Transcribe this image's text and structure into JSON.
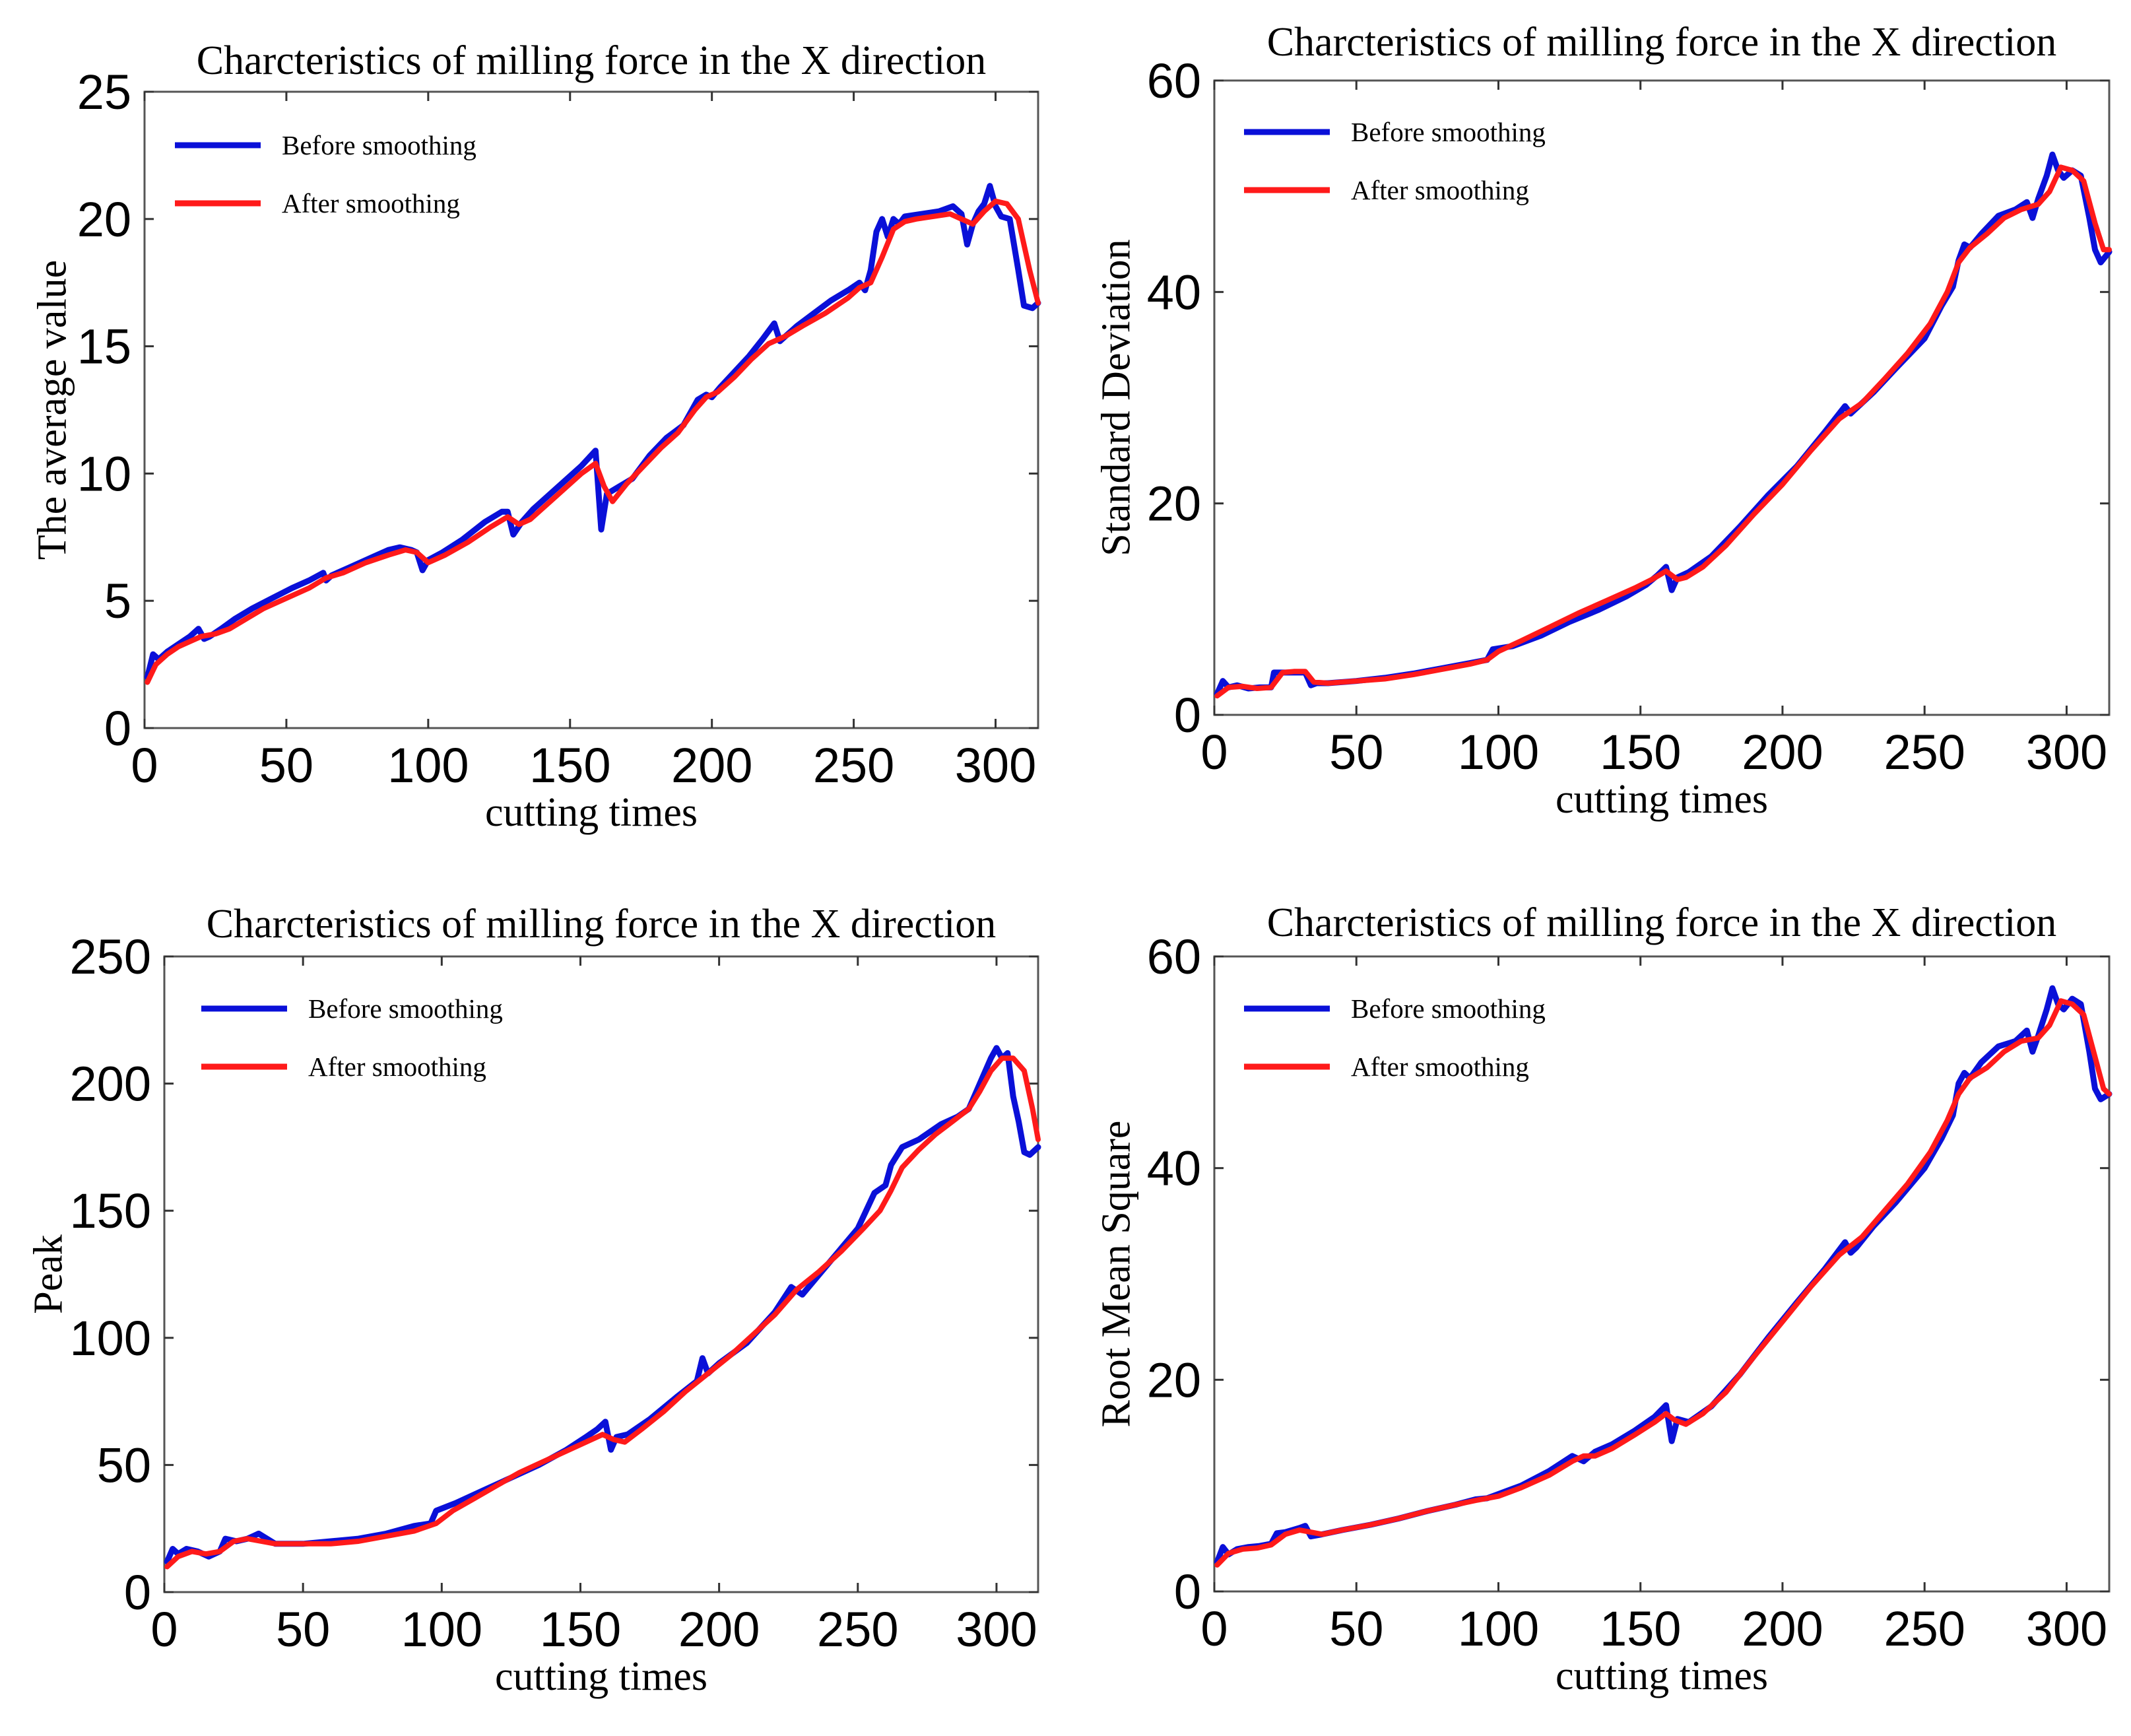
{
  "chart_data": [
    {
      "type": "line",
      "title": "Charcteristics of milling force in the X direction",
      "xlabel": "cutting times",
      "ylabel": "The average value",
      "xlim": [
        0,
        315
      ],
      "ylim": [
        0,
        25
      ],
      "xticks": [
        0,
        50,
        100,
        150,
        200,
        250,
        300
      ],
      "yticks": [
        0,
        5,
        10,
        15,
        20,
        25
      ],
      "legend_position": "top-left",
      "grid": false,
      "series": [
        {
          "name": "Before smoothing",
          "color": "#0a10d8",
          "x": [
            1,
            3,
            5,
            8,
            12,
            16,
            19,
            21,
            23,
            27,
            32,
            38,
            45,
            52,
            58,
            63,
            64,
            66,
            72,
            80,
            86,
            90,
            94,
            96,
            98,
            100,
            105,
            112,
            120,
            126,
            128,
            130,
            133,
            137,
            142,
            148,
            154,
            159,
            161,
            163,
            166,
            172,
            178,
            184,
            190,
            195,
            198,
            200,
            203,
            208,
            213,
            218,
            222,
            224,
            226,
            230,
            236,
            242,
            248,
            252,
            254,
            256,
            258,
            260,
            262,
            264,
            266,
            268,
            274,
            280,
            285,
            288,
            290,
            292,
            294,
            296,
            298,
            300,
            302,
            305,
            308,
            310,
            313,
            315
          ],
          "y": [
            2.0,
            2.9,
            2.7,
            3.0,
            3.3,
            3.6,
            3.9,
            3.5,
            3.6,
            3.9,
            4.3,
            4.7,
            5.1,
            5.5,
            5.8,
            6.1,
            5.8,
            6.0,
            6.3,
            6.7,
            7.0,
            7.1,
            7.0,
            6.9,
            6.2,
            6.6,
            6.9,
            7.4,
            8.1,
            8.5,
            8.5,
            7.6,
            8.1,
            8.6,
            9.1,
            9.7,
            10.3,
            10.9,
            7.8,
            9.2,
            9.4,
            9.8,
            10.7,
            11.4,
            11.9,
            12.9,
            13.1,
            13.0,
            13.4,
            14.0,
            14.6,
            15.3,
            15.9,
            15.2,
            15.4,
            15.8,
            16.3,
            16.8,
            17.2,
            17.5,
            17.2,
            18.0,
            19.5,
            20.0,
            19.3,
            20.0,
            19.8,
            20.1,
            20.2,
            20.3,
            20.5,
            20.2,
            19.0,
            19.8,
            20.3,
            20.6,
            21.3,
            20.5,
            20.1,
            20.0,
            18.0,
            16.6,
            16.5,
            16.7
          ]
        },
        {
          "name": "After smoothing",
          "color": "#ff1a1a",
          "x": [
            1,
            4,
            8,
            12,
            16,
            20,
            25,
            30,
            36,
            42,
            50,
            58,
            64,
            70,
            78,
            86,
            92,
            96,
            100,
            106,
            114,
            122,
            128,
            132,
            136,
            142,
            148,
            154,
            159,
            162,
            165,
            170,
            176,
            182,
            188,
            194,
            198,
            202,
            208,
            214,
            220,
            226,
            232,
            240,
            248,
            252,
            256,
            260,
            264,
            268,
            272,
            278,
            284,
            288,
            292,
            296,
            300,
            304,
            308,
            312,
            315
          ],
          "y": [
            1.8,
            2.5,
            2.9,
            3.2,
            3.4,
            3.6,
            3.7,
            3.9,
            4.3,
            4.7,
            5.1,
            5.5,
            5.9,
            6.1,
            6.5,
            6.8,
            7.0,
            6.9,
            6.5,
            6.8,
            7.3,
            7.9,
            8.3,
            8.0,
            8.2,
            8.8,
            9.4,
            10.0,
            10.4,
            9.5,
            8.9,
            9.6,
            10.3,
            11.0,
            11.6,
            12.5,
            13.0,
            13.2,
            13.8,
            14.5,
            15.1,
            15.4,
            15.8,
            16.3,
            16.9,
            17.3,
            17.5,
            18.5,
            19.6,
            19.9,
            20.0,
            20.1,
            20.2,
            20.0,
            19.8,
            20.3,
            20.7,
            20.6,
            20.0,
            18.0,
            16.7
          ]
        }
      ]
    },
    {
      "type": "line",
      "title": "Charcteristics of milling force in the X direction",
      "xlabel": "cutting times",
      "ylabel": "Standard Deviation",
      "xlim": [
        0,
        315
      ],
      "ylim": [
        0,
        60
      ],
      "xticks": [
        0,
        50,
        100,
        150,
        200,
        250,
        300
      ],
      "yticks": [
        0,
        20,
        40,
        60
      ],
      "legend_position": "top-left",
      "grid": false,
      "series": [
        {
          "name": "Before smoothing",
          "color": "#0a10d8",
          "x": [
            1,
            3,
            5,
            8,
            12,
            16,
            20,
            21,
            24,
            28,
            32,
            34,
            36,
            40,
            50,
            60,
            70,
            80,
            90,
            96,
            98,
            105,
            115,
            125,
            135,
            145,
            152,
            156,
            159,
            161,
            163,
            167,
            175,
            185,
            195,
            205,
            215,
            222,
            224,
            226,
            232,
            240,
            250,
            256,
            260,
            262,
            264,
            266,
            270,
            276,
            282,
            286,
            288,
            290,
            293,
            295,
            297,
            299,
            302,
            305,
            308,
            310,
            312,
            315
          ],
          "y": [
            2.0,
            3.2,
            2.6,
            2.8,
            2.5,
            2.6,
            2.6,
            4.0,
            4.0,
            4.0,
            4.0,
            2.8,
            3.0,
            3.0,
            3.2,
            3.5,
            3.9,
            4.4,
            4.9,
            5.2,
            6.2,
            6.5,
            7.5,
            8.8,
            9.9,
            11.2,
            12.3,
            13.2,
            14.0,
            11.8,
            13.0,
            13.5,
            15.0,
            17.8,
            20.8,
            23.5,
            26.8,
            29.2,
            28.5,
            29.0,
            30.5,
            32.8,
            35.6,
            38.7,
            40.5,
            43.0,
            44.5,
            44.2,
            45.5,
            47.2,
            47.8,
            48.5,
            47.0,
            48.8,
            51.0,
            53.0,
            51.5,
            50.8,
            51.5,
            51.0,
            47.0,
            44.0,
            42.8,
            43.8
          ]
        },
        {
          "name": "After smoothing",
          "color": "#ff1a1a",
          "x": [
            1,
            5,
            10,
            15,
            20,
            24,
            28,
            32,
            35,
            40,
            50,
            60,
            70,
            80,
            90,
            96,
            100,
            108,
            118,
            128,
            138,
            148,
            154,
            159,
            163,
            166,
            172,
            180,
            190,
            200,
            210,
            220,
            228,
            236,
            244,
            252,
            258,
            262,
            266,
            272,
            278,
            284,
            290,
            294,
            298,
            302,
            306,
            310,
            313,
            315
          ],
          "y": [
            1.8,
            2.6,
            2.7,
            2.5,
            2.6,
            4.0,
            4.1,
            4.1,
            3.1,
            3.0,
            3.2,
            3.4,
            3.8,
            4.3,
            4.8,
            5.2,
            6.0,
            7.0,
            8.3,
            9.6,
            10.8,
            12.0,
            12.8,
            13.6,
            12.8,
            13.0,
            14.0,
            16.0,
            19.0,
            21.8,
            25.0,
            28.0,
            29.5,
            31.8,
            34.2,
            37.0,
            40.0,
            42.8,
            44.2,
            45.5,
            47.0,
            47.8,
            48.3,
            49.5,
            51.8,
            51.5,
            50.5,
            46.5,
            44.0,
            44.0
          ]
        }
      ]
    },
    {
      "type": "line",
      "title": "Charcteristics of milling force in the X direction",
      "xlabel": "cutting times",
      "ylabel": "Peak",
      "xlim": [
        0,
        315
      ],
      "ylim": [
        0,
        250
      ],
      "xticks": [
        0,
        50,
        100,
        150,
        200,
        250,
        300
      ],
      "yticks": [
        0,
        50,
        100,
        150,
        200,
        250
      ],
      "legend_position": "top-left",
      "grid": false,
      "series": [
        {
          "name": "Before smoothing",
          "color": "#0a10d8",
          "x": [
            1,
            3,
            5,
            8,
            12,
            16,
            20,
            22,
            26,
            30,
            34,
            40,
            50,
            60,
            70,
            80,
            90,
            96,
            98,
            105,
            115,
            125,
            135,
            145,
            152,
            156,
            159,
            161,
            163,
            167,
            175,
            185,
            192,
            194,
            196,
            200,
            210,
            220,
            226,
            230,
            240,
            250,
            256,
            260,
            262,
            266,
            272,
            280,
            286,
            290,
            294,
            298,
            300,
            302,
            304,
            306,
            308,
            310,
            312,
            315
          ],
          "y": [
            12,
            17,
            15,
            17,
            16,
            14,
            16,
            21,
            20,
            21,
            23,
            19,
            19,
            20,
            21,
            23,
            26,
            27,
            32,
            35,
            40,
            45,
            50,
            56,
            61,
            64,
            67,
            56,
            61,
            62,
            68,
            77,
            83,
            92,
            86,
            90,
            98,
            110,
            120,
            117,
            130,
            143,
            157,
            160,
            168,
            175,
            178,
            184,
            187,
            190,
            200,
            210,
            214,
            210,
            212,
            195,
            185,
            173,
            172,
            175
          ]
        },
        {
          "name": "After smoothing",
          "color": "#ff1a1a",
          "x": [
            1,
            5,
            10,
            15,
            20,
            25,
            30,
            35,
            40,
            50,
            60,
            70,
            80,
            90,
            98,
            104,
            112,
            120,
            128,
            136,
            144,
            152,
            158,
            162,
            166,
            172,
            180,
            188,
            196,
            204,
            212,
            220,
            228,
            236,
            244,
            252,
            258,
            262,
            266,
            272,
            278,
            284,
            290,
            294,
            298,
            302,
            306,
            310,
            313,
            315
          ],
          "y": [
            10,
            14,
            16,
            15,
            16,
            20,
            21,
            20,
            19,
            19,
            19,
            20,
            22,
            24,
            27,
            32,
            37,
            42,
            47,
            51,
            55,
            59,
            62,
            60,
            59,
            64,
            71,
            79,
            86,
            93,
            101,
            109,
            119,
            126,
            134,
            143,
            150,
            158,
            167,
            174,
            180,
            185,
            190,
            197,
            205,
            210,
            210,
            205,
            190,
            178
          ]
        }
      ]
    },
    {
      "type": "line",
      "title": "Charcteristics of milling force in the X direction",
      "xlabel": "cutting times",
      "ylabel": "Root Mean Square",
      "xlim": [
        0,
        315
      ],
      "ylim": [
        0,
        60
      ],
      "xticks": [
        0,
        50,
        100,
        150,
        200,
        250,
        300
      ],
      "yticks": [
        0,
        20,
        40,
        60
      ],
      "legend_position": "top-left",
      "grid": false,
      "series": [
        {
          "name": "Before smoothing",
          "color": "#0a10d8",
          "x": [
            1,
            3,
            5,
            8,
            12,
            16,
            20,
            22,
            25,
            30,
            32,
            34,
            38,
            45,
            55,
            65,
            75,
            85,
            92,
            96,
            100,
            108,
            118,
            126,
            130,
            134,
            140,
            148,
            155,
            159,
            161,
            163,
            167,
            175,
            185,
            195,
            205,
            215,
            222,
            224,
            226,
            232,
            240,
            250,
            256,
            260,
            262,
            264,
            266,
            270,
            276,
            282,
            286,
            288,
            290,
            293,
            295,
            297,
            299,
            302,
            305,
            308,
            310,
            312,
            315
          ],
          "y": [
            2.8,
            4.2,
            3.5,
            4.0,
            4.2,
            4.3,
            4.5,
            5.5,
            5.6,
            6.0,
            6.2,
            5.2,
            5.4,
            5.8,
            6.3,
            6.9,
            7.6,
            8.2,
            8.7,
            8.8,
            9.2,
            10.0,
            11.4,
            12.8,
            12.3,
            13.2,
            13.9,
            15.2,
            16.5,
            17.6,
            14.2,
            16.3,
            16.0,
            17.5,
            20.5,
            24.0,
            27.3,
            30.5,
            33.0,
            32.0,
            32.5,
            34.5,
            36.8,
            40.0,
            42.8,
            45.0,
            48.0,
            49.0,
            48.5,
            50.0,
            51.5,
            52.0,
            53.0,
            51.0,
            52.5,
            55.0,
            57.0,
            55.5,
            55.0,
            56.0,
            55.5,
            51.0,
            47.5,
            46.5,
            47.0
          ]
        },
        {
          "name": "After smoothing",
          "color": "#ff1a1a",
          "x": [
            1,
            5,
            10,
            15,
            20,
            25,
            30,
            34,
            38,
            45,
            55,
            65,
            75,
            85,
            92,
            96,
            100,
            108,
            118,
            126,
            130,
            134,
            140,
            148,
            155,
            159,
            162,
            166,
            172,
            180,
            190,
            200,
            210,
            220,
            228,
            236,
            244,
            252,
            258,
            262,
            266,
            272,
            278,
            284,
            290,
            294,
            298,
            302,
            306,
            310,
            313,
            315
          ],
          "y": [
            2.5,
            3.6,
            4.0,
            4.1,
            4.4,
            5.4,
            5.8,
            5.6,
            5.4,
            5.8,
            6.3,
            6.9,
            7.6,
            8.2,
            8.6,
            8.8,
            9.0,
            9.8,
            11.0,
            12.3,
            12.8,
            12.8,
            13.5,
            14.8,
            16.0,
            16.8,
            16.2,
            15.8,
            16.8,
            18.8,
            22.2,
            25.5,
            28.8,
            31.8,
            33.5,
            36.0,
            38.5,
            41.5,
            44.5,
            47.0,
            48.5,
            49.5,
            51.0,
            52.0,
            52.3,
            53.5,
            55.8,
            55.5,
            54.5,
            50.5,
            47.5,
            47.0
          ]
        }
      ]
    }
  ]
}
